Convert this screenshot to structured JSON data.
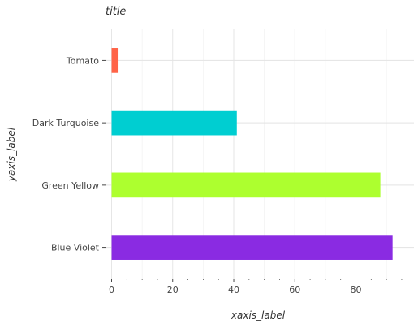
{
  "chart_data": {
    "type": "bar",
    "orientation": "horizontal",
    "title": "title",
    "xlabel": "xaxis_label",
    "ylabel": "yaxis_label",
    "categories": [
      "Blue Violet",
      "Green Yellow",
      "Dark Turquoise",
      "Tomato"
    ],
    "values": [
      92,
      88,
      41,
      2
    ],
    "colors": [
      "#8a2be2",
      "#adff2f",
      "#00ced1",
      "#ff6347"
    ],
    "xlim": [
      -2,
      99
    ],
    "xticks": [
      0,
      20,
      40,
      60,
      80
    ],
    "grid": true,
    "legend": "none"
  }
}
